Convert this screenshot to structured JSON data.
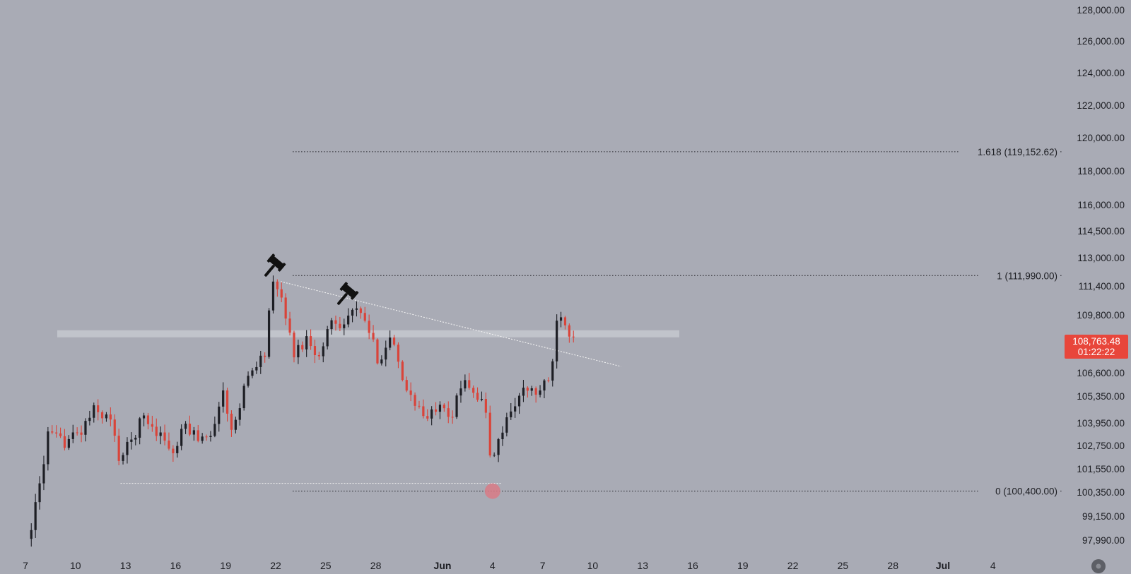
{
  "chart_data": {
    "type": "candlestick",
    "colors": {
      "background": "#a9abb5",
      "up": "#1d1e24",
      "down": "#d9443a",
      "price_badge": "#e8463b",
      "zone": "#c6c8cf",
      "dotted_line": "#2a2b30",
      "trendline": "#f2f2f2",
      "marker": "#d97a86"
    },
    "y_axis": {
      "ticks": [
        "128,000.00",
        "126,000.00",
        "124,000.00",
        "122,000.00",
        "120,000.00",
        "118,000.00",
        "116,000.00",
        "114,500.00",
        "113,000.00",
        "111,400.00",
        "109,800.00",
        "106,600.00",
        "105,350.00",
        "103,950.00",
        "102,750.00",
        "101,550.00",
        "100,350.00",
        "99,150.00",
        "97,990.00"
      ]
    },
    "x_axis": {
      "ticks": [
        "7",
        "10",
        "13",
        "16",
        "19",
        "22",
        "25",
        "28",
        "Jun",
        "4",
        "7",
        "10",
        "13",
        "16",
        "19",
        "22",
        "25",
        "28",
        "Jul",
        "4"
      ],
      "bold_ticks": [
        "Jun",
        "Jul"
      ]
    },
    "fib_levels": [
      {
        "label": "1.618 (119,152.62)",
        "value": 119152.62
      },
      {
        "label": "1 (111,990.00)",
        "value": 111990.0
      },
      {
        "label": "0 (100,400.00)",
        "value": 100400.0
      }
    ],
    "current_price": {
      "price": "108,763.48",
      "countdown": "01:22:22"
    },
    "resistance_zone": {
      "low": 108650,
      "high": 108950
    },
    "support_line_value": 100800,
    "trendline": {
      "from": {
        "day": 22.3,
        "value": 111650
      },
      "to": {
        "day": 42.7,
        "value": 106950
      }
    },
    "low_marker": {
      "day": 35.0,
      "value": 100400
    },
    "gavel_icons": [
      "gavel-icon",
      "gavel-icon"
    ],
    "scroll_icon": "circle-button-icon",
    "keypoints": [
      {
        "day": 7.3,
        "value": 97900
      },
      {
        "day": 7.9,
        "value": 99700
      },
      {
        "day": 8.6,
        "value": 103300
      },
      {
        "day": 9.5,
        "value": 102900
      },
      {
        "day": 10.6,
        "value": 103500
      },
      {
        "day": 11.3,
        "value": 104600
      },
      {
        "day": 12.3,
        "value": 104200
      },
      {
        "day": 12.9,
        "value": 102000
      },
      {
        "day": 13.6,
        "value": 103000
      },
      {
        "day": 14.3,
        "value": 104300
      },
      {
        "day": 15.6,
        "value": 103100
      },
      {
        "day": 16.1,
        "value": 102200
      },
      {
        "day": 16.8,
        "value": 103800
      },
      {
        "day": 17.6,
        "value": 103200
      },
      {
        "day": 18.6,
        "value": 103600
      },
      {
        "day": 19.0,
        "value": 106000
      },
      {
        "day": 19.6,
        "value": 103400
      },
      {
        "day": 20.4,
        "value": 106000
      },
      {
        "day": 21.1,
        "value": 107200
      },
      {
        "day": 21.6,
        "value": 107600
      },
      {
        "day": 22.0,
        "value": 111500
      },
      {
        "day": 22.7,
        "value": 110600
      },
      {
        "day": 23.3,
        "value": 107600
      },
      {
        "day": 24.2,
        "value": 108600
      },
      {
        "day": 24.9,
        "value": 107300
      },
      {
        "day": 25.5,
        "value": 109600
      },
      {
        "day": 26.3,
        "value": 109300
      },
      {
        "day": 26.9,
        "value": 110100
      },
      {
        "day": 27.6,
        "value": 109500
      },
      {
        "day": 28.4,
        "value": 107300
      },
      {
        "day": 29.2,
        "value": 108600
      },
      {
        "day": 29.8,
        "value": 106100
      },
      {
        "day": 30.6,
        "value": 105100
      },
      {
        "day": 31.3,
        "value": 104000
      },
      {
        "day": 32.1,
        "value": 105200
      },
      {
        "day": 32.8,
        "value": 104300
      },
      {
        "day": 33.6,
        "value": 106400
      },
      {
        "day": 34.2,
        "value": 105500
      },
      {
        "day": 34.8,
        "value": 104800
      },
      {
        "day": 35.2,
        "value": 101500
      },
      {
        "day": 35.6,
        "value": 103000
      },
      {
        "day": 36.4,
        "value": 104800
      },
      {
        "day": 37.2,
        "value": 105700
      },
      {
        "day": 37.9,
        "value": 105500
      },
      {
        "day": 38.6,
        "value": 106100
      },
      {
        "day": 38.9,
        "value": 107700
      },
      {
        "day": 39.2,
        "value": 110300
      },
      {
        "day": 39.6,
        "value": 109400
      },
      {
        "day": 39.9,
        "value": 108800
      }
    ]
  }
}
